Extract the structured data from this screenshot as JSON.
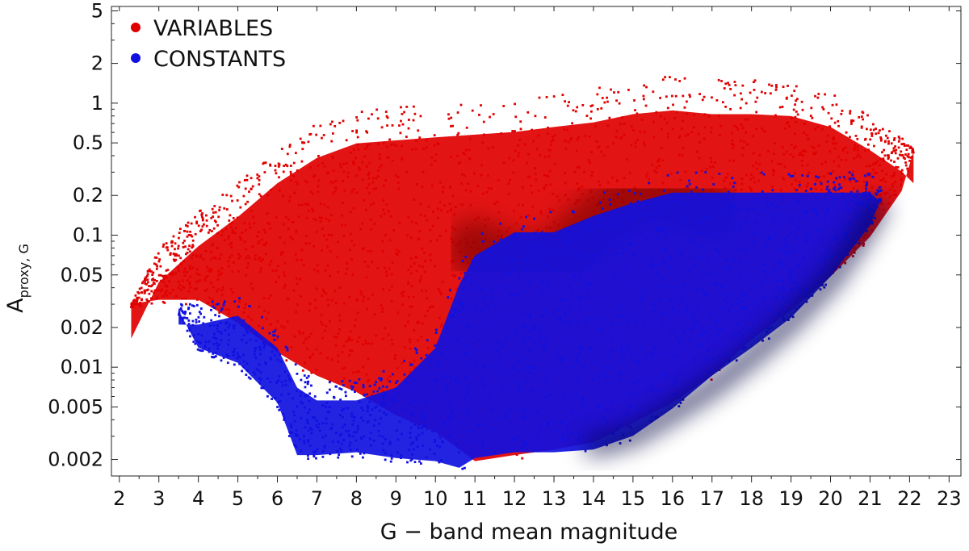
{
  "chart_data": {
    "type": "scatter",
    "title": "",
    "xlabel": "G − band mean magnitude",
    "ylabel": "A",
    "ylabel_subscript": "proxy, G",
    "xlim": [
      1.8,
      23.3
    ],
    "ylim": [
      0.0015,
      5.4
    ],
    "yscale": "log",
    "grid": false,
    "legend_position": "top-left",
    "x_ticks": [
      2,
      3,
      4,
      5,
      6,
      7,
      8,
      9,
      10,
      11,
      12,
      13,
      14,
      15,
      16,
      17,
      18,
      19,
      20,
      21,
      22,
      23
    ],
    "y_ticks": [
      0.002,
      0.005,
      0.01,
      0.02,
      0.05,
      0.1,
      0.2,
      0.5,
      1,
      2,
      5
    ],
    "y_tick_labels": [
      "0.002",
      "0.005",
      "0.01",
      "0.02",
      "0.05",
      "0.1",
      "0.2",
      "0.5",
      "1",
      "2",
      "5"
    ],
    "series": [
      {
        "name": "VARIABLES",
        "color": "#e00000",
        "dense_color": "#6b0000",
        "envelope": {
          "x": [
            2.3,
            3,
            4,
            5,
            6,
            7,
            8,
            9,
            10,
            11,
            12,
            13,
            14,
            15,
            16,
            17,
            18,
            19,
            20,
            21,
            21.8,
            22.1
          ],
          "y_upper": [
            0.03,
            0.08,
            0.15,
            0.25,
            0.45,
            0.7,
            0.9,
            0.95,
            1.0,
            1.05,
            1.1,
            1.2,
            1.3,
            1.5,
            1.6,
            1.5,
            1.5,
            1.45,
            1.2,
            0.8,
            0.55,
            0.45
          ],
          "y_lower": [
            0.028,
            0.03,
            0.03,
            0.02,
            0.012,
            0.008,
            0.006,
            0.004,
            0.003,
            0.0018,
            0.002,
            0.0022,
            0.0025,
            0.0035,
            0.005,
            0.008,
            0.015,
            0.025,
            0.045,
            0.09,
            0.2,
            0.4
          ]
        },
        "core": {
          "x": [
            11,
            12,
            13,
            14,
            15,
            16,
            17
          ],
          "y": [
            0.08,
            0.06,
            0.06,
            0.12,
            0.2,
            0.2,
            0.15
          ]
        }
      },
      {
        "name": "CONSTANTS",
        "color": "#1010e0",
        "dense_color": "#000040",
        "envelope": {
          "x": [
            3.5,
            4,
            5,
            6,
            6.5,
            7,
            8,
            9,
            10,
            10.6,
            11,
            12,
            13,
            14,
            15,
            16,
            17,
            18,
            19,
            20,
            21,
            21.3
          ],
          "y_upper": [
            0.03,
            0.03,
            0.035,
            0.02,
            0.01,
            0.008,
            0.008,
            0.01,
            0.02,
            0.06,
            0.1,
            0.15,
            0.15,
            0.2,
            0.25,
            0.3,
            0.3,
            0.3,
            0.3,
            0.3,
            0.3,
            0.25
          ],
          "y_lower": [
            0.025,
            0.013,
            0.01,
            0.005,
            0.002,
            0.002,
            0.0021,
            0.0019,
            0.0018,
            0.0016,
            0.0019,
            0.0021,
            0.0021,
            0.0022,
            0.0028,
            0.0045,
            0.008,
            0.013,
            0.022,
            0.045,
            0.11,
            0.18
          ]
        },
        "ridge": {
          "x": [
            14,
            15,
            16,
            17,
            18,
            19,
            20,
            20.7,
            21.2
          ],
          "y": [
            0.0025,
            0.003,
            0.0045,
            0.007,
            0.012,
            0.022,
            0.045,
            0.09,
            0.16
          ]
        }
      }
    ]
  }
}
